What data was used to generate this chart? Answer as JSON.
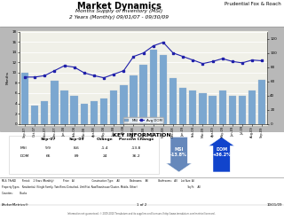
{
  "title": "Market Dynamics",
  "subtitle1": "Months Supply of Inventory (MSI)",
  "subtitle2": "2 Years (Monthly) 09/01/07 - 09/30/09",
  "top_right": "Prudential Fox & Roach",
  "months": [
    "Sep-07",
    "Oct-07",
    "Nov-07",
    "Dec-07",
    "Jan-08",
    "Feb-08",
    "Mar-08",
    "Apr-08",
    "May-08",
    "Jun-08",
    "Jul-08",
    "Aug-08",
    "Sep-08",
    "Oct-08",
    "Nov-08",
    "Dec-08",
    "Jan-09",
    "Feb-09",
    "Mar-09",
    "Apr-09",
    "May-09",
    "Jun-09",
    "Jul-09",
    "Aug-09",
    "Sep-09"
  ],
  "msi": [
    9.9,
    3.5,
    4.5,
    8.5,
    6.5,
    5.5,
    4.0,
    4.5,
    5.0,
    6.5,
    7.5,
    9.5,
    11.5,
    14.5,
    13.5,
    9.0,
    7.0,
    6.5,
    6.0,
    5.5,
    6.5,
    5.5,
    5.5,
    6.5,
    8.6
  ],
  "dom": [
    66,
    66,
    68,
    75,
    82,
    80,
    72,
    68,
    65,
    70,
    75,
    95,
    100,
    110,
    115,
    100,
    95,
    90,
    85,
    88,
    92,
    88,
    86,
    90,
    89
  ],
  "bar_color": "#7ba7d0",
  "line_color": "#2020aa",
  "marker_color": "#2020aa",
  "bg_color": "#f0f0e8",
  "outer_bg": "#b8b8b8",
  "white_bg": "#ffffff",
  "msi_ylim": [
    0,
    18
  ],
  "msi_yticks": [
    0,
    2,
    4,
    6,
    8,
    10,
    12,
    14,
    16,
    18
  ],
  "dom_ylim": [
    0,
    130
  ],
  "dom_yticks": [
    0,
    20,
    40,
    60,
    80,
    100,
    120
  ],
  "legend_msi": "MSI",
  "legend_dom": "Avg DOM",
  "key_info_title": "KEY INFORMATION",
  "key_rows": [
    "MSI",
    "DOM"
  ],
  "key_sep07": [
    "9.9",
    "66"
  ],
  "key_sep09": [
    "8.6",
    "89"
  ],
  "key_change": [
    "-1.4",
    "24"
  ],
  "key_pct_change": [
    "-13.8",
    "36.2"
  ],
  "msi_arrow_label": "MSI\n-13.8%",
  "dom_arrow_label": "DOM\n+36.2%",
  "msi_arrow_color": "#6688bb",
  "dom_arrow_color": "#1144cc",
  "footer_line1": "MLS: TReND        Period:    2 Years (Monthly)            Price:   All                      Construction Type:    All             Bedrooms:    All             Bathrooms:   All     Lot Size: All",
  "footer_line2": "Property Types:   Residential: (Single Family, Twin/Semi-Detached, Unit/Flat, Row/Townhouse/Cluster, Mobile, Other)                                                                 Sq Ft:    All",
  "footer_line3": "Counties:         Bucks",
  "footer_bm": "BrokerMetrics®",
  "footer_page": "1 of 2",
  "footer_date": "10/01/09",
  "footer_copy": "Information not guaranteed. © 2009-2010 Terradatum and its suppliers and licensors (http://www.terradatum.com/metrics/licensors)."
}
